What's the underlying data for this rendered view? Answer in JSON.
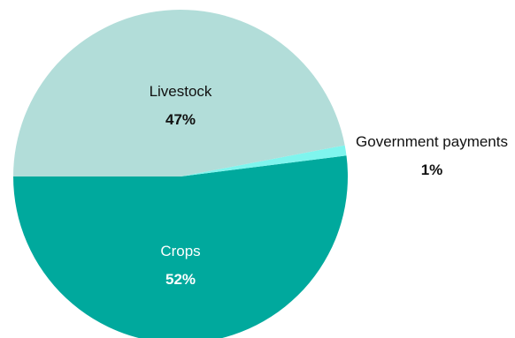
{
  "chart_data": {
    "type": "pie",
    "title": "",
    "start": "left-horizontal",
    "direction": "counterclockwise",
    "slices": [
      {
        "label": "Crops",
        "percent_label": "52%",
        "value": 52,
        "color": "#00a99d",
        "text_color": "#ffffff"
      },
      {
        "label": "Government payments",
        "percent_label": "1%",
        "value": 1,
        "color": "#7ff5ee",
        "text_color": "#111111"
      },
      {
        "label": "Livestock",
        "percent_label": "47%",
        "value": 47,
        "color": "#b2ddd9",
        "text_color": "#111111"
      }
    ]
  }
}
